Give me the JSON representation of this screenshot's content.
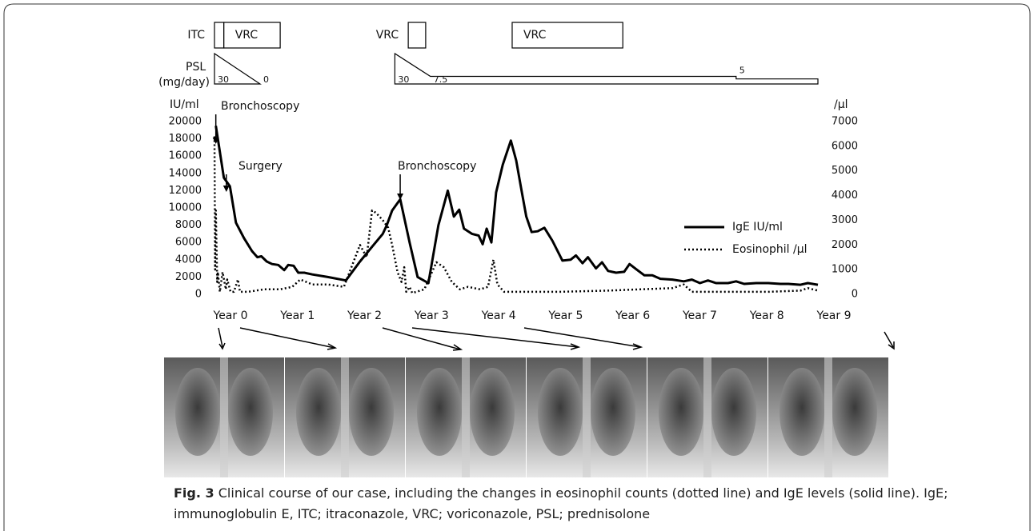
{
  "chart_data": {
    "type": "line",
    "x_axis_labels_note_free": null,
    "ylabel": "IU/ml",
    "y2label": "/µl",
    "xlim": [
      0,
      9
    ],
    "xticks": [
      {
        "value": 0,
        "label": "Year 0"
      },
      {
        "value": 1,
        "label": "Year 1"
      },
      {
        "value": 2,
        "label": "Year 2"
      },
      {
        "value": 3,
        "label": "Year 3"
      },
      {
        "value": 4,
        "label": "Year 4"
      },
      {
        "value": 5,
        "label": "Year 5"
      },
      {
        "value": 6,
        "label": "Year 6"
      },
      {
        "value": 7,
        "label": "Year 7"
      },
      {
        "value": 8,
        "label": "Year 8"
      },
      {
        "value": 9,
        "label": "Year 9"
      }
    ],
    "ylim": [
      0,
      20000
    ],
    "yticks": [
      0,
      2000,
      4000,
      6000,
      8000,
      10000,
      12000,
      14000,
      16000,
      18000,
      20000
    ],
    "y2lim": [
      0,
      7000
    ],
    "y2ticks": [
      0,
      1000,
      2000,
      3000,
      4000,
      5000,
      6000,
      7000
    ],
    "series": [
      {
        "name": "IgE IU/ml",
        "color": "#000000",
        "style": "solid",
        "x": [
          0.02,
          0.14,
          0.23,
          0.32,
          0.44,
          0.56,
          0.64,
          0.7,
          0.78,
          0.86,
          0.95,
          1.04,
          1.1,
          1.18,
          1.25,
          1.34,
          1.46,
          1.69,
          1.96,
          2.17,
          2.35,
          2.51,
          2.57,
          2.65,
          2.77,
          2.91,
          3.03,
          3.19,
          3.34,
          3.48,
          3.57,
          3.65,
          3.72,
          3.84,
          3.94,
          4.0,
          4.06,
          4.13,
          4.2,
          4.3,
          4.42,
          4.5,
          4.58,
          4.65,
          4.73,
          4.82,
          4.92,
          5.04,
          5.19,
          5.31,
          5.39,
          5.49,
          5.57,
          5.69,
          5.78,
          5.87,
          5.99,
          6.11,
          6.19,
          6.29,
          6.41,
          6.53,
          6.65,
          6.83,
          7.0,
          7.12,
          7.24,
          7.36,
          7.48,
          7.66,
          7.78,
          7.9,
          8.08,
          8.26,
          8.44,
          8.56,
          8.74,
          8.85,
          9.0
        ],
        "values": [
          19500,
          13500,
          12500,
          8300,
          6500,
          5000,
          4300,
          4400,
          3800,
          3500,
          3400,
          2800,
          3400,
          3300,
          2500,
          2500,
          2300,
          2000,
          1600,
          3800,
          5500,
          7000,
          8000,
          9700,
          11000,
          6000,
          2000,
          1300,
          8000,
          12000,
          9000,
          9800,
          7600,
          7000,
          6800,
          5800,
          7600,
          6000,
          11800,
          15000,
          17800,
          15500,
          12000,
          9000,
          7200,
          7300,
          7700,
          6200,
          3900,
          4000,
          4500,
          3600,
          4300,
          3000,
          3700,
          2700,
          2500,
          2600,
          3500,
          2900,
          2200,
          2200,
          1800,
          1700,
          1500,
          1700,
          1300,
          1600,
          1300,
          1300,
          1500,
          1200,
          1300,
          1300,
          1200,
          1200,
          1100,
          1300,
          1100
        ]
      },
      {
        "name": "Eosinophil /µl",
        "color": "#000000",
        "style": "dotted",
        "axis": "y2",
        "x": [
          0.0,
          0.01,
          0.02,
          0.04,
          0.05,
          0.08,
          0.12,
          0.17,
          0.19,
          0.24,
          0.29,
          0.35,
          0.38,
          0.5,
          0.74,
          0.98,
          1.16,
          1.28,
          1.46,
          1.69,
          1.93,
          2.17,
          2.27,
          2.35,
          2.41,
          2.51,
          2.59,
          2.65,
          2.73,
          2.79,
          2.83,
          2.86,
          2.91,
          2.95,
          3.13,
          3.31,
          3.42,
          3.54,
          3.66,
          3.78,
          3.96,
          4.08,
          4.16,
          4.22,
          4.32,
          4.68,
          5.16,
          5.87,
          6.35,
          6.83,
          7.0,
          7.12,
          7.54,
          8.26,
          8.74,
          8.85,
          9.0
        ],
        "values": [
          6400,
          1000,
          3400,
          500,
          900,
          100,
          900,
          200,
          600,
          100,
          100,
          600,
          100,
          100,
          200,
          200,
          300,
          600,
          400,
          400,
          300,
          2000,
          1500,
          3400,
          3300,
          3000,
          2700,
          2000,
          900,
          500,
          1100,
          100,
          300,
          50,
          200,
          1300,
          1100,
          500,
          200,
          300,
          200,
          300,
          1400,
          400,
          100,
          100,
          100,
          150,
          200,
          250,
          400,
          100,
          100,
          100,
          150,
          250,
          150
        ]
      }
    ],
    "annotations": [
      {
        "text": "Bronchoscopy",
        "x": 0.02
      },
      {
        "text": "Surgery",
        "x": 0.32
      },
      {
        "text": "Bronchoscopy",
        "x": 2.77
      }
    ],
    "treatments": [
      {
        "label": "ITC",
        "start": 0,
        "end": 0.14
      },
      {
        "label": "VRC",
        "start": 0.14,
        "end": 0.98
      },
      {
        "label": "VRC",
        "start": 2.89,
        "end": 3.15
      },
      {
        "label": "VRC",
        "start": 4.44,
        "end": 6.09
      }
    ],
    "psl": {
      "label": "PSL",
      "unit": "(mg/day)",
      "courses": [
        {
          "x": [
            0,
            0.68
          ],
          "values": [
            30,
            0
          ]
        },
        {
          "x": [
            2.69,
            3.22,
            7.78,
            7.78,
            9.0
          ],
          "values": [
            30,
            7.5,
            7.5,
            5,
            5
          ]
        }
      ]
    }
  },
  "caption": {
    "label": "Fig. 3",
    "text": "Clinical course of our case, including the changes in eosinophil counts (dotted line) and IgE levels (solid line). IgE; immunoglobulin E, ITC; itraconazole, VRC; voriconazole, PSL; prednisolone"
  }
}
